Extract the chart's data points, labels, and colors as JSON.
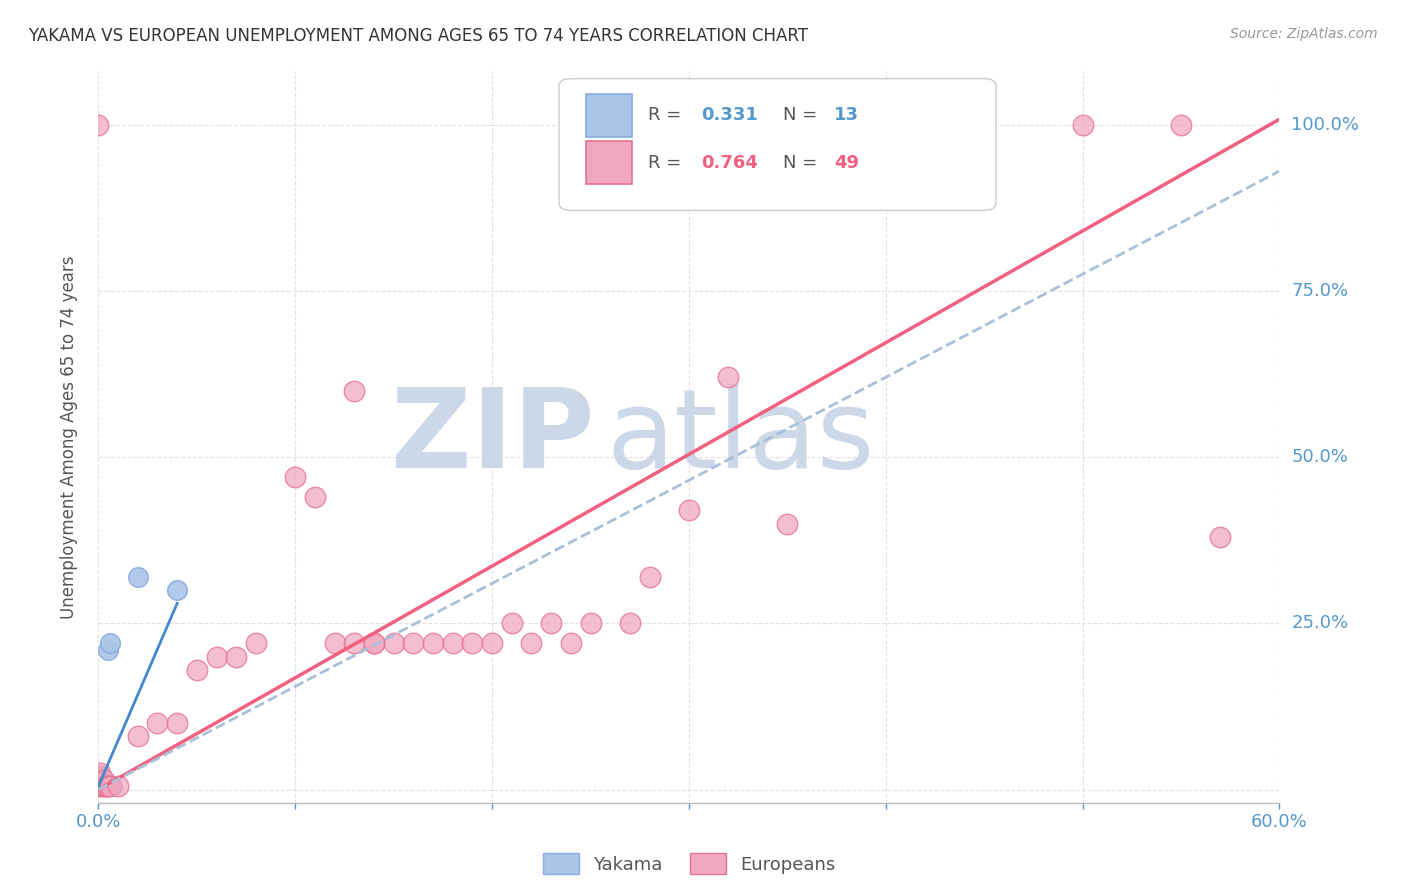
{
  "title": "YAKAMA VS EUROPEAN UNEMPLOYMENT AMONG AGES 65 TO 74 YEARS CORRELATION CHART",
  "source_text": "Source: ZipAtlas.com",
  "ylabel": "Unemployment Among Ages 65 to 74 years",
  "xlim": [
    0.0,
    0.6
  ],
  "ylim": [
    -0.02,
    1.08
  ],
  "xticks": [
    0.0,
    0.1,
    0.2,
    0.3,
    0.4,
    0.5,
    0.6
  ],
  "yticks": [
    0.0,
    0.25,
    0.5,
    0.75,
    1.0
  ],
  "background_color": "#ffffff",
  "grid_color": "#e8e0e0",
  "watermark_line1": "ZIP",
  "watermark_line2": "atlas",
  "watermark_color": "#ccd8e8",
  "yakama_color": "#aac4e8",
  "yakama_edge_color": "#88aadd",
  "europeans_color": "#f0a8c0",
  "europeans_edge_color": "#e87090",
  "trendline_yakama_color": "#aabfd8",
  "trendline_europeans_color": "#f06080",
  "yakama_line_color": "#4488cc",
  "europeans_line_color": "#ee6688",
  "eu_trend_slope": 1.68,
  "eu_trend_intercept": 0.0,
  "yk_trend_slope": 1.55,
  "yk_trend_intercept": 0.0,
  "yakama_points_x": [
    0.001,
    0.001,
    0.001,
    0.002,
    0.002,
    0.003,
    0.003,
    0.004,
    0.005,
    0.006,
    0.007,
    0.02,
    0.04
  ],
  "yakama_points_y": [
    0.005,
    0.01,
    0.02,
    0.005,
    0.015,
    0.005,
    0.01,
    0.005,
    0.21,
    0.22,
    0.005,
    0.32,
    0.3
  ],
  "europeans_points_x": [
    0.001,
    0.001,
    0.001,
    0.001,
    0.001,
    0.002,
    0.002,
    0.003,
    0.003,
    0.004,
    0.005,
    0.006,
    0.01,
    0.02,
    0.03,
    0.04,
    0.05,
    0.06,
    0.07,
    0.08,
    0.1,
    0.11,
    0.12,
    0.13,
    0.14,
    0.15,
    0.16,
    0.17,
    0.18,
    0.19,
    0.2,
    0.21,
    0.22,
    0.23,
    0.24,
    0.25,
    0.27,
    0.28,
    0.3,
    0.32,
    0.35,
    0.4,
    0.5,
    0.55,
    0.57,
    0.35,
    0.13,
    0.14,
    0.0
  ],
  "europeans_points_y": [
    0.005,
    0.01,
    0.015,
    0.02,
    0.025,
    0.005,
    0.01,
    0.005,
    0.015,
    0.005,
    0.005,
    0.005,
    0.005,
    0.08,
    0.1,
    0.1,
    0.18,
    0.2,
    0.2,
    0.22,
    0.47,
    0.44,
    0.22,
    0.22,
    0.22,
    0.22,
    0.22,
    0.22,
    0.22,
    0.22,
    0.22,
    0.25,
    0.22,
    0.25,
    0.22,
    0.25,
    0.25,
    0.32,
    0.42,
    0.62,
    0.4,
    1.0,
    1.0,
    1.0,
    0.38,
    0.98,
    0.6,
    0.22,
    1.0
  ]
}
